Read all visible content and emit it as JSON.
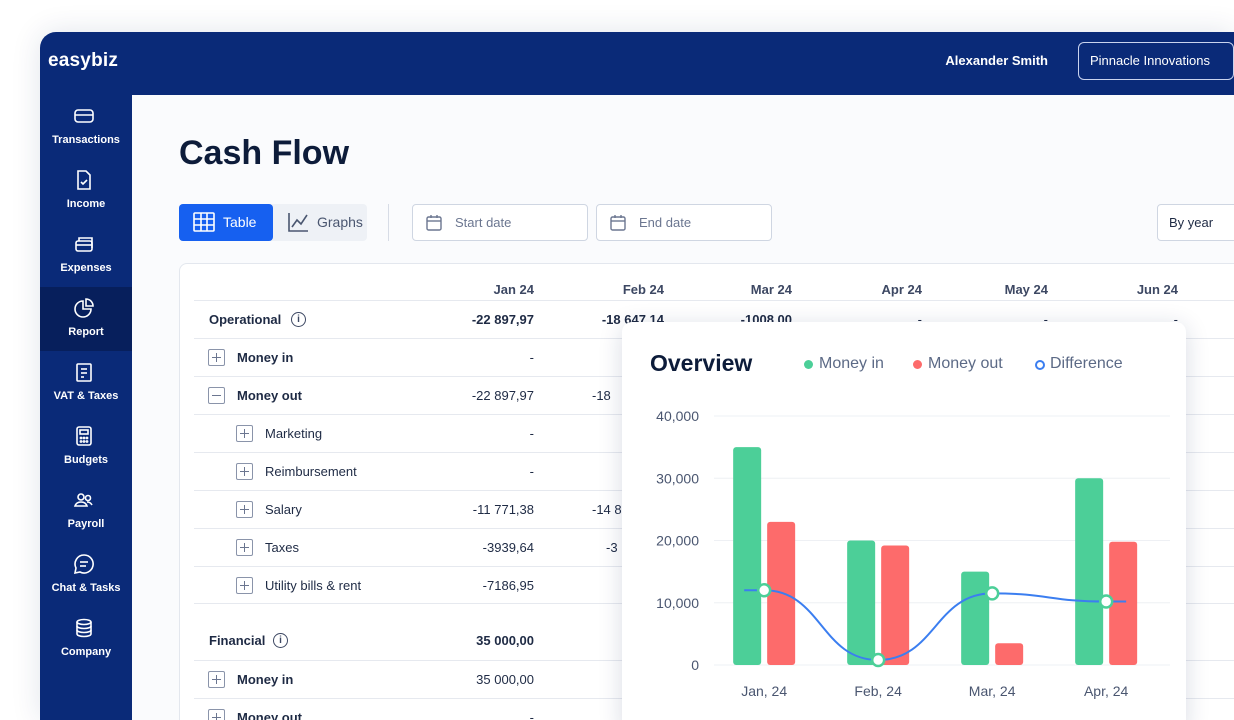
{
  "app": {
    "logo": "easybiz",
    "user_name": "Alexander Smith",
    "company": "Pinnacle Innovations"
  },
  "sidebar": {
    "items": [
      {
        "label": "Transactions",
        "icon": "card-icon",
        "active": false
      },
      {
        "label": "Income",
        "icon": "document-check-icon",
        "active": false
      },
      {
        "label": "Expenses",
        "icon": "cards-stack-icon",
        "active": false
      },
      {
        "label": "Report",
        "icon": "pie-chart-icon",
        "active": true
      },
      {
        "label": "VAT & Taxes",
        "icon": "receipt-icon",
        "active": false
      },
      {
        "label": "Budgets",
        "icon": "calculator-icon",
        "active": false
      },
      {
        "label": "Payroll",
        "icon": "people-icon",
        "active": false
      },
      {
        "label": "Chat & Tasks",
        "icon": "chat-icon",
        "active": false
      },
      {
        "label": "Company",
        "icon": "database-icon",
        "active": false
      }
    ]
  },
  "page": {
    "title": "Cash Flow"
  },
  "toolbar": {
    "table_label": "Table",
    "graphs_label": "Graphs",
    "start_date_placeholder": "Start date",
    "end_date_placeholder": "End date",
    "period": "By year"
  },
  "table": {
    "columns": [
      "Jan 24",
      "Feb 24",
      "Mar 24",
      "Apr 24",
      "May 24",
      "Jun 24"
    ],
    "rows": [
      {
        "name": "Operational",
        "values": [
          "-22 897,97",
          "-18 647,14",
          "-1008,00",
          "-",
          "-",
          "-"
        ]
      },
      {
        "name": "Money in",
        "values": [
          "-"
        ]
      },
      {
        "name": "Money out",
        "values": [
          "-22 897,97",
          "-18"
        ]
      },
      {
        "name": "Marketing",
        "values": [
          "-"
        ]
      },
      {
        "name": "Reimbursement",
        "values": [
          "-"
        ]
      },
      {
        "name": "Salary",
        "values": [
          "-11 771,38",
          "-14 8"
        ]
      },
      {
        "name": "Taxes",
        "values": [
          "-3939,64",
          "-3"
        ]
      },
      {
        "name": "Utility bills & rent",
        "values": [
          "-7186,95"
        ]
      },
      {
        "name": "Financial",
        "values": [
          "35 000,00"
        ]
      },
      {
        "name": "Money in",
        "values": [
          "35 000,00"
        ]
      },
      {
        "name": "Money out",
        "values": [
          "-"
        ]
      }
    ]
  },
  "overview": {
    "title": "Overview",
    "legend": [
      {
        "label": "Money in",
        "color": "#4ccf98"
      },
      {
        "label": "Money out",
        "color": "#fd6b6b"
      },
      {
        "label": "Difference",
        "color": "#3b7ef0"
      }
    ]
  },
  "chart_data": {
    "type": "bar",
    "categories": [
      "Jan, 24",
      "Feb, 24",
      "Mar, 24",
      "Apr, 24"
    ],
    "series": [
      {
        "name": "Money in",
        "values": [
          35000,
          20000,
          15000,
          30000
        ]
      },
      {
        "name": "Money out",
        "values": [
          23000,
          19200,
          3500,
          19800
        ]
      },
      {
        "name": "Difference",
        "values": [
          12000,
          800,
          11500,
          10200
        ]
      }
    ],
    "y_ticks": [
      "40,000",
      "30,000",
      "20,000",
      "10,000",
      "0"
    ],
    "ylim": [
      0,
      40000
    ],
    "grid": true,
    "legend_position": "top"
  }
}
